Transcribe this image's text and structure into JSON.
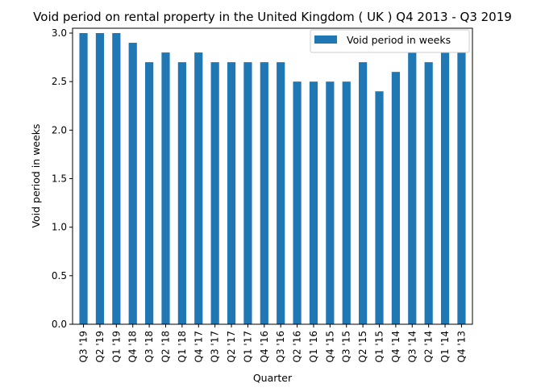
{
  "chart_data": {
    "type": "bar",
    "title": "Void period on rental property in the United Kingdom ( UK ) Q4 2013 - Q3 2019",
    "xlabel": "Quarter",
    "ylabel": "Void period in weeks",
    "ylim": [
      0,
      3.05
    ],
    "yticks": [
      "0.0",
      "0.5",
      "1.0",
      "1.5",
      "2.0",
      "2.5",
      "3.0"
    ],
    "ytick_values": [
      0,
      0.5,
      1.0,
      1.5,
      2.0,
      2.5,
      3.0
    ],
    "categories": [
      "Q3 '19",
      "Q2 '19",
      "Q1 '19",
      "Q4 '18",
      "Q3 '18",
      "Q2 '18",
      "Q1 '18",
      "Q4 '17",
      "Q3 '17",
      "Q2 '17",
      "Q1 '17",
      "Q4 '16",
      "Q3 '16",
      "Q2 '16",
      "Q1 '16",
      "Q4 '15",
      "Q3 '15",
      "Q2 '15",
      "Q1 '15",
      "Q4 '14",
      "Q3 '14",
      "Q2 '14",
      "Q1 '14",
      "Q4 '13"
    ],
    "series": [
      {
        "name": "Void period in weeks",
        "color": "#1f77b4",
        "values": [
          3.0,
          3.0,
          3.0,
          2.9,
          2.7,
          2.8,
          2.7,
          2.8,
          2.7,
          2.7,
          2.7,
          2.7,
          2.7,
          2.5,
          2.5,
          2.5,
          2.5,
          2.7,
          2.4,
          2.6,
          2.8,
          2.7,
          2.8,
          2.8
        ]
      }
    ],
    "legend": {
      "position": "top-right"
    },
    "grid": false
  }
}
